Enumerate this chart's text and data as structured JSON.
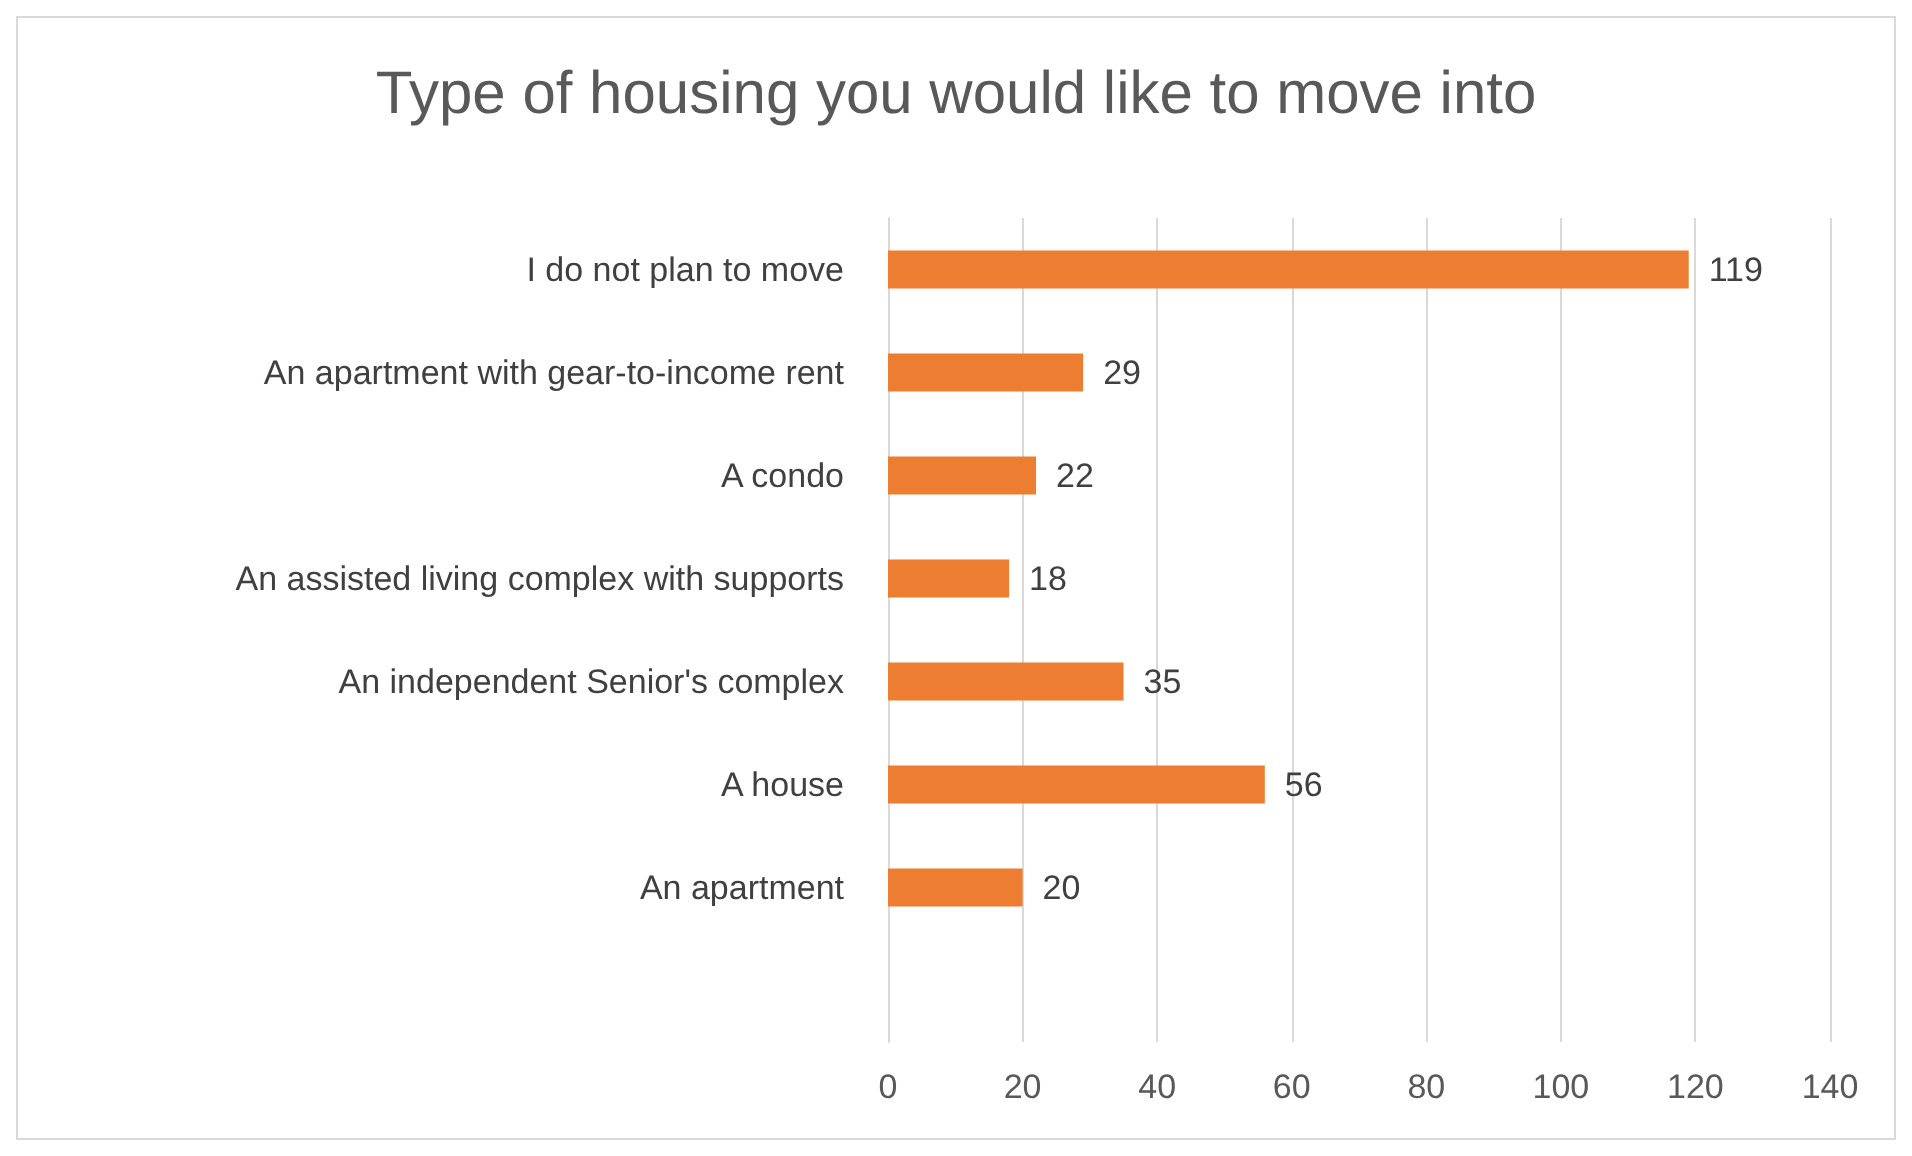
{
  "chart_data": {
    "type": "bar",
    "orientation": "horizontal",
    "title": "Type of housing you would like to move into",
    "categories": [
      "I do not plan to move",
      "An apartment with gear-to-income rent",
      "A condo",
      "An assisted living complex with supports",
      "An independent Senior's complex",
      "A house",
      "An apartment",
      null
    ],
    "values": [
      119,
      29,
      22,
      18,
      35,
      56,
      20,
      null
    ],
    "color": "#ed7d31",
    "xlim": [
      0,
      140
    ],
    "xticks": [
      0,
      20,
      40,
      60,
      80,
      100,
      120,
      140
    ],
    "grid": "x",
    "data_labels": true
  }
}
